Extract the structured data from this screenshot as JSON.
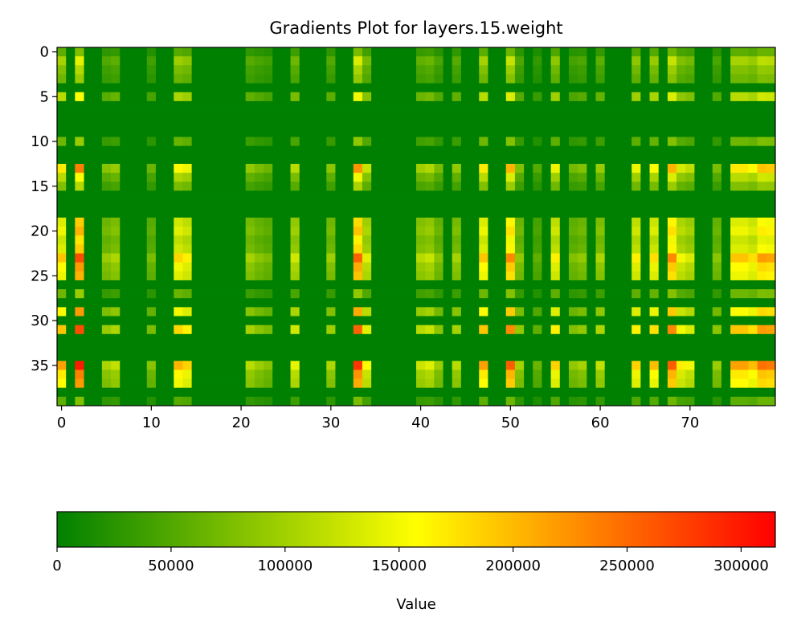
{
  "chart_data": {
    "type": "heatmap",
    "title": "Gradients Plot for layers.15.weight",
    "xlabel": "",
    "ylabel": "",
    "n_rows": 40,
    "n_cols": 80,
    "x_ticks": [
      0,
      10,
      20,
      30,
      40,
      50,
      60,
      70
    ],
    "y_ticks": [
      0,
      5,
      10,
      15,
      20,
      25,
      30,
      35
    ],
    "colorbar": {
      "label": "Value",
      "orientation": "horizontal",
      "placement": "bottom",
      "range": [
        0,
        315000
      ],
      "ticks": [
        0,
        50000,
        100000,
        150000,
        200000,
        250000,
        300000
      ],
      "tick_labels": [
        "0",
        "50000",
        "100000",
        "150000",
        "200000",
        "250000",
        "300000"
      ],
      "colormap": [
        {
          "stop": 0.0,
          "color": "#008000"
        },
        {
          "stop": 0.5,
          "color": "#ffff00"
        },
        {
          "stop": 1.0,
          "color": "#ff0000"
        }
      ]
    },
    "column_factors": {
      "0": 0.72,
      "2": 1.0,
      "5": 0.35,
      "6": 0.4,
      "10": 0.28,
      "13": 0.68,
      "14": 0.62,
      "21": 0.38,
      "22": 0.32,
      "23": 0.28,
      "26": 0.48,
      "30": 0.36,
      "33": 0.95,
      "34": 0.52,
      "40": 0.42,
      "41": 0.46,
      "42": 0.32,
      "44": 0.38,
      "47": 0.72,
      "50": 0.86,
      "51": 0.34,
      "53": 0.22,
      "55": 0.62,
      "57": 0.3,
      "58": 0.34,
      "60": 0.4,
      "64": 0.62,
      "66": 0.66,
      "68": 0.86,
      "69": 0.56,
      "70": 0.5,
      "73": 0.32,
      "75": 0.72,
      "76": 0.72,
      "77": 0.66,
      "78": 0.82,
      "79": 0.8
    },
    "row_factors": {
      "0": 0.25,
      "1": 0.45,
      "2": 0.35,
      "3": 0.3,
      "5": 0.5,
      "10": 0.3,
      "13": 0.75,
      "14": 0.5,
      "15": 0.35,
      "19": 0.6,
      "20": 0.65,
      "21": 0.55,
      "22": 0.6,
      "23": 0.85,
      "24": 0.7,
      "25": 0.65,
      "27": 0.3,
      "29": 0.7,
      "31": 0.85,
      "35": 0.95,
      "36": 0.75,
      "37": 0.7,
      "39": 0.25
    },
    "value_scale_max": 315000
  }
}
